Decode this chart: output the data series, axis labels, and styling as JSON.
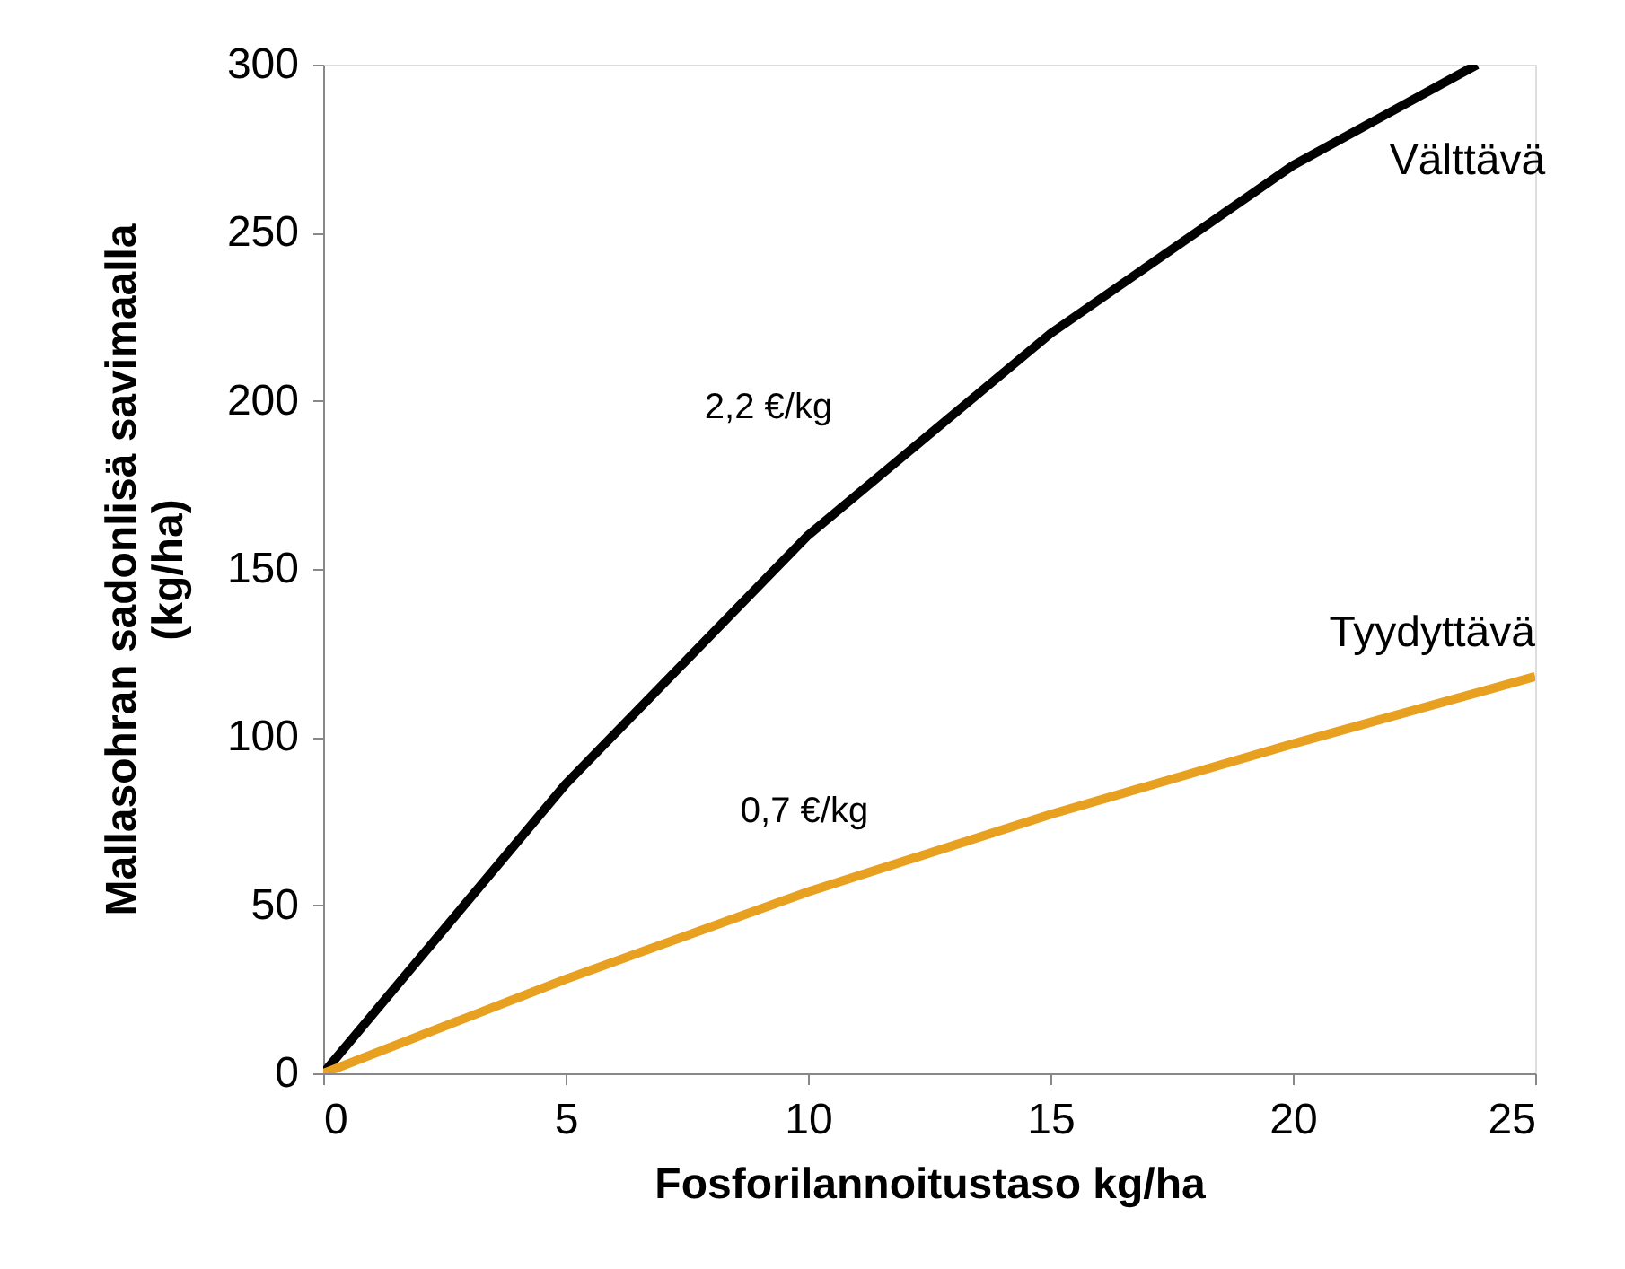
{
  "chart_data": {
    "type": "line",
    "xlabel": "Fosforilannoitustaso kg/ha",
    "ylabel": "Mallasohran sadonlisä savimaalla (kg/ha)",
    "xlim": [
      0,
      25
    ],
    "xticks": [
      0,
      5,
      10,
      15,
      20,
      25
    ],
    "ylim": [
      0,
      300
    ],
    "yticks": [
      0,
      50,
      100,
      150,
      200,
      250,
      300
    ],
    "grid": false,
    "marker": "none",
    "line_style": "solid",
    "series": [
      {
        "name": "Välttävä",
        "color": "#000000",
        "x": [
          0,
          5,
          10,
          15,
          20,
          23.8
        ],
        "values": [
          0,
          86,
          160,
          220,
          270,
          300
        ]
      },
      {
        "name": "Tyydyttävä",
        "color": "#e8a020",
        "x": [
          0,
          5,
          10,
          15,
          20,
          25
        ],
        "values": [
          0,
          28,
          54,
          77,
          98,
          118
        ]
      }
    ],
    "annotations": [
      "2,2 €/kg",
      "0,7 €/kg"
    ]
  }
}
